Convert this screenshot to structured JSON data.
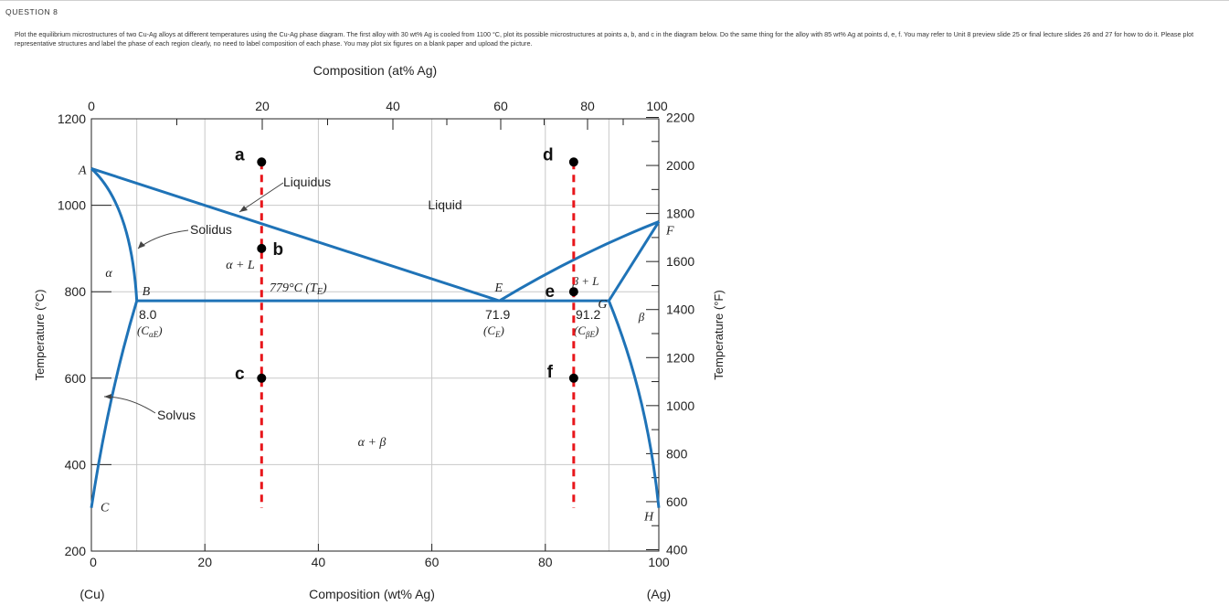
{
  "question": {
    "title": "QUESTION 8",
    "instructions": "Plot the equilibrium microstructures of two Cu-Ag alloys at different temperatures using the Cu-Ag phase diagram. The first alloy with 30 wt% Ag is cooled from 1100 °C, plot its possible microstructures at points a, b, and c in the diagram below. Do the same thing for the alloy with 85 wt% Ag at points d, e, f. You may refer to Unit 8 preview slide 25 or final lecture slides 26 and 27 for how to do it. Please plot representative structures and label the phase of each region clearly, no need to label composition of each phase. You may plot six figures on a blank paper and upload the picture."
  },
  "chart_data": {
    "type": "phase-diagram",
    "title": "",
    "top_axis": {
      "label": "Composition (at% Ag)",
      "ticks": [
        0,
        20,
        40,
        60,
        80,
        100
      ]
    },
    "bottom_axis": {
      "label": "Composition (wt% Ag)",
      "ticks": [
        0,
        20,
        40,
        60,
        80,
        100
      ],
      "left_end": "(Cu)",
      "right_end": "(Ag)",
      "range": [
        0,
        100
      ]
    },
    "left_axis": {
      "label": "Temperature (°C)",
      "ticks": [
        200,
        400,
        600,
        800,
        1000,
        1200
      ],
      "range": [
        200,
        1200
      ]
    },
    "right_axis": {
      "label": "Temperature (°F)",
      "ticks": [
        400,
        600,
        800,
        1000,
        1200,
        1400,
        1600,
        1800,
        2000,
        2200
      ]
    },
    "boundary_points": [
      {
        "name": "A",
        "x": 0,
        "y": 1085
      },
      {
        "name": "B",
        "x": 8.0,
        "y": 779
      },
      {
        "name": "C",
        "x": 0,
        "y": 300
      },
      {
        "name": "E",
        "x": 71.9,
        "y": 779
      },
      {
        "name": "F",
        "x": 100,
        "y": 962
      },
      {
        "name": "G",
        "x": 91.2,
        "y": 779
      },
      {
        "name": "H",
        "x": 100,
        "y": 300
      }
    ],
    "eutectic": {
      "temperature_label": "779°C (T",
      "temperature_sub": "E",
      "temperature_close": ")"
    },
    "compositions": [
      {
        "value": "8.0",
        "symbol": "C",
        "sub": "αE"
      },
      {
        "value": "71.9",
        "symbol": "C",
        "sub": "E"
      },
      {
        "value": "91.2",
        "symbol": "C",
        "sub": "βE"
      }
    ],
    "region_labels": {
      "alpha": "α",
      "alpha_L": "α + L",
      "liquid": "Liquid",
      "beta_L": "β + L",
      "beta": "β",
      "alpha_beta": "α + β"
    },
    "curve_labels": {
      "liquidus": "Liquidus",
      "solidus": "Solidus",
      "solvus": "Solvus"
    },
    "alloys": [
      {
        "wt_ag": 30,
        "points": [
          {
            "name": "a",
            "y": 1100
          },
          {
            "name": "b",
            "y": 900
          },
          {
            "name": "c",
            "y": 600
          }
        ]
      },
      {
        "wt_ag": 85,
        "points": [
          {
            "name": "d",
            "y": 1100
          },
          {
            "name": "e",
            "y": 800
          },
          {
            "name": "f",
            "y": 600
          }
        ]
      }
    ],
    "grid": true,
    "line_color": "#1f73b7",
    "marker_line_color": "#e8161b",
    "grid_color": "#c8c8c8"
  }
}
